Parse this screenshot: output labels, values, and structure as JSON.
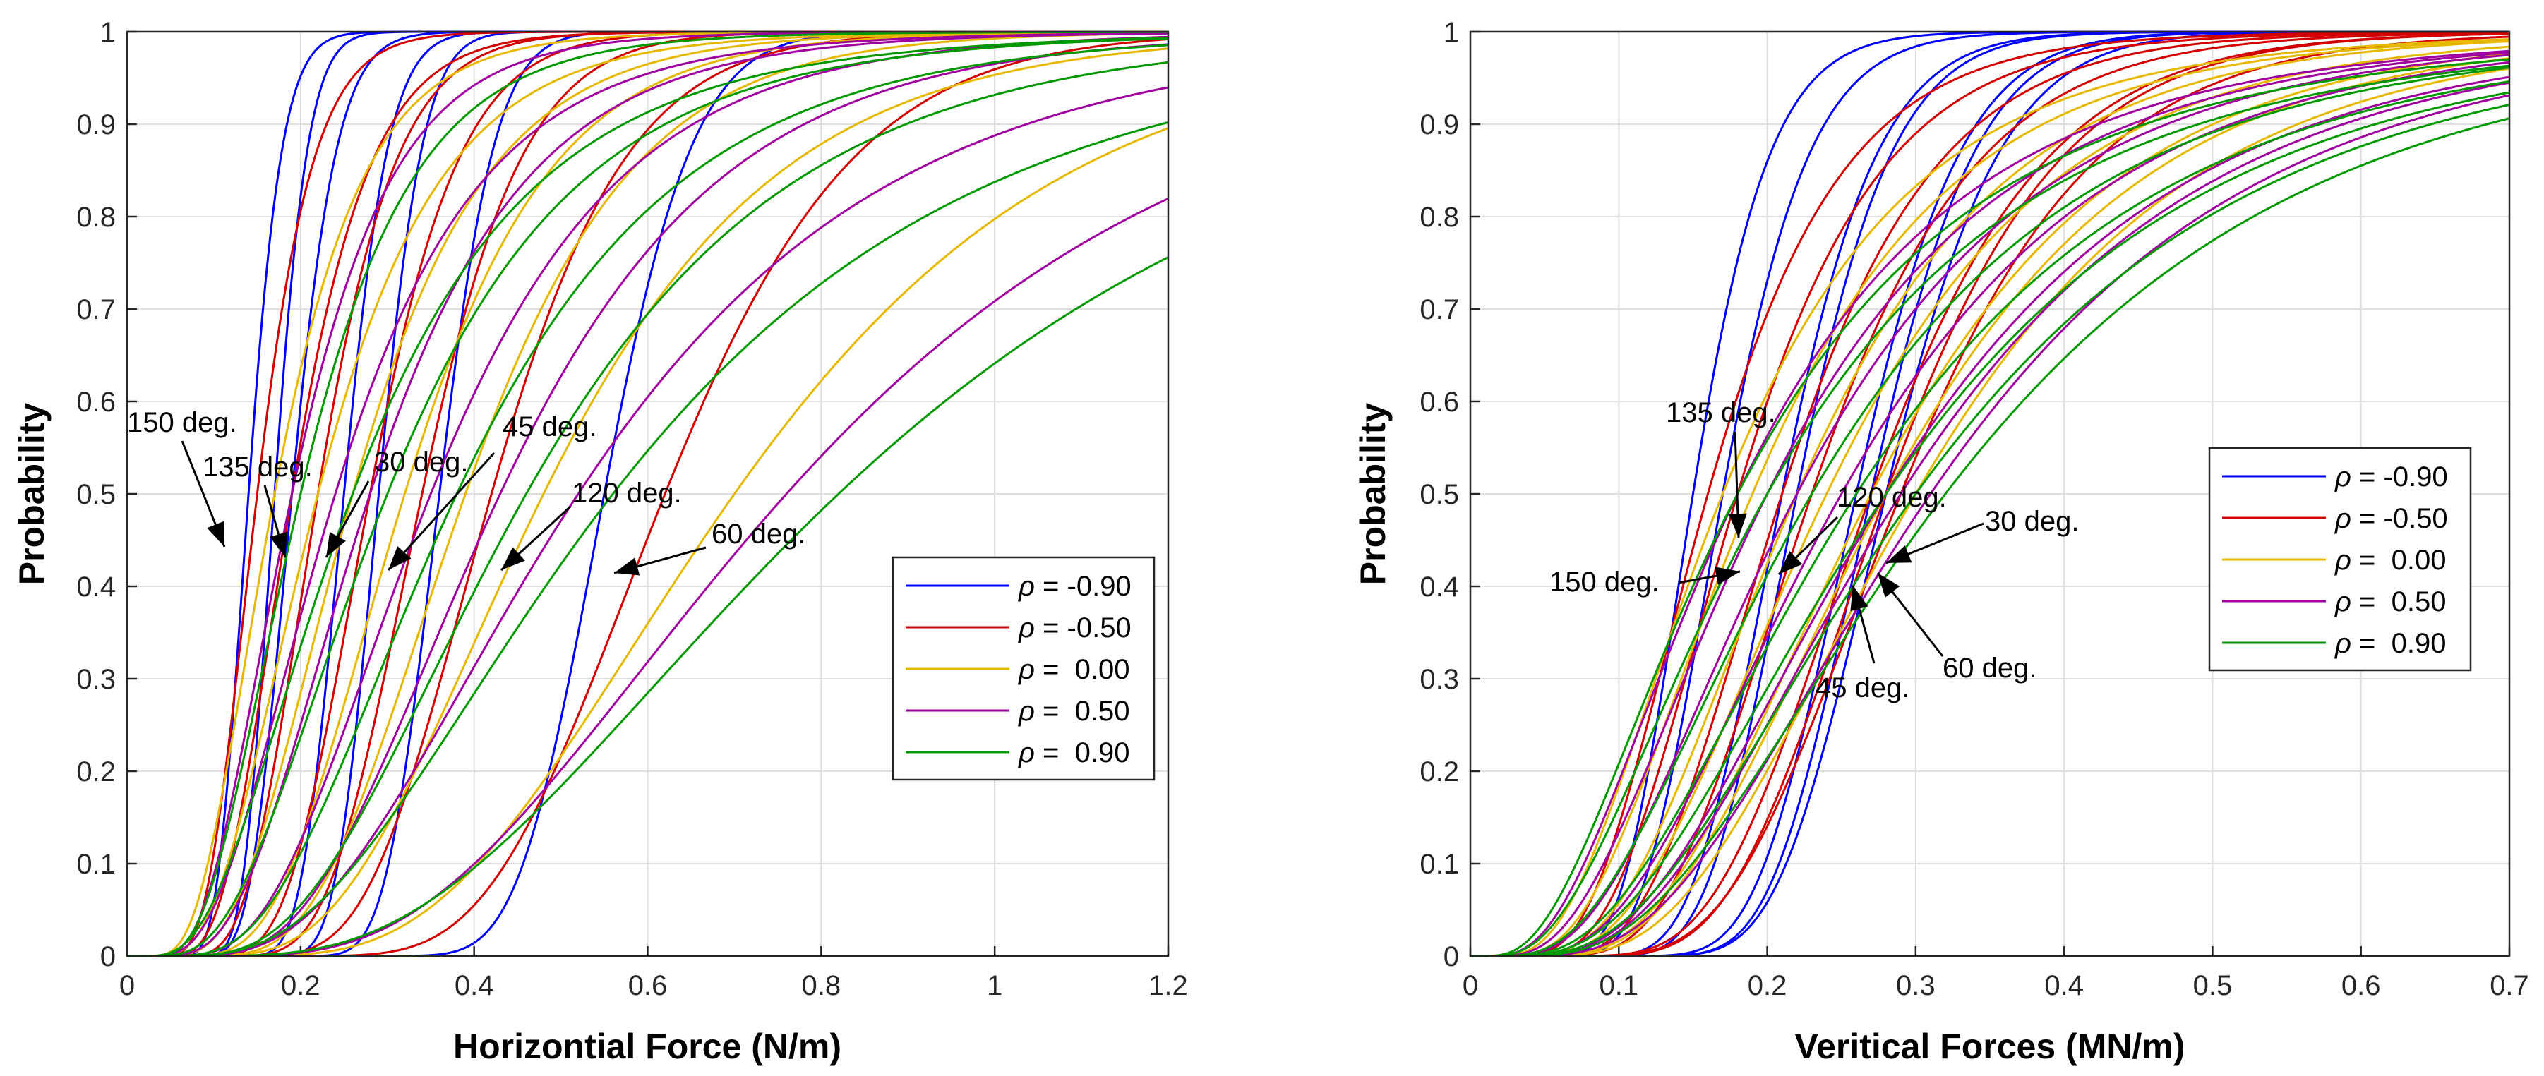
{
  "chart_data": [
    {
      "type": "line",
      "title": "",
      "xlabel": "Horizontial Force (N/m)",
      "ylabel": "Probability",
      "xlim": [
        0,
        1.2
      ],
      "ylim": [
        0,
        1
      ],
      "xticks": [
        "0",
        "0.2",
        "0.4",
        "0.6",
        "0.8",
        "1",
        "1.2"
      ],
      "yticks": [
        "0",
        "0.1",
        "0.2",
        "0.3",
        "0.4",
        "0.5",
        "0.6",
        "0.7",
        "0.8",
        "0.9",
        "1"
      ],
      "grid": true,
      "legend_position": "middle-right",
      "legend": [
        {
          "symbol": "ρ",
          "text": " = -0.90",
          "color": "#0000ff"
        },
        {
          "symbol": "ρ",
          "text": " = -0.50",
          "color": "#d40000"
        },
        {
          "symbol": "ρ",
          "text": " =  0.00",
          "color": "#e6b800"
        },
        {
          "symbol": "ρ",
          "text": " =  0.50",
          "color": "#a000a0"
        },
        {
          "symbol": "ρ",
          "text": " =  0.90",
          "color": "#009900"
        }
      ],
      "crossings": [
        {
          "label": "150 deg.",
          "x": 0.115,
          "y": 0.43
        },
        {
          "label": "135 deg.",
          "x": 0.18,
          "y": 0.42
        },
        {
          "label": "30 deg.",
          "x": 0.23,
          "y": 0.42
        },
        {
          "label": "45 deg.",
          "x": 0.3,
          "y": 0.42
        },
        {
          "label": "120 deg.",
          "x": 0.43,
          "y": 0.42
        },
        {
          "label": "60 deg.",
          "x": 0.56,
          "y": 0.42
        }
      ],
      "series": [
        {
          "rho": -0.9,
          "curves": [
            [
              0.14,
              0.03
            ],
            [
              0.17,
              0.03
            ],
            [
              0.19,
              0.04
            ],
            [
              0.25,
              0.04
            ],
            [
              0.29,
              0.04
            ],
            [
              0.36,
              0.05
            ],
            [
              0.55,
              0.08
            ]
          ]
        },
        {
          "rho": -0.5,
          "curves": [
            [
              0.15,
              0.05
            ],
            [
              0.19,
              0.07
            ],
            [
              0.22,
              0.07
            ],
            [
              0.28,
              0.08
            ],
            [
              0.34,
              0.09
            ],
            [
              0.42,
              0.12
            ],
            [
              0.62,
              0.17
            ]
          ]
        },
        {
          "rho": 0.0,
          "curves": [
            [
              0.17,
              0.08
            ],
            [
              0.22,
              0.11
            ],
            [
              0.26,
              0.12
            ],
            [
              0.32,
              0.13
            ],
            [
              0.39,
              0.15
            ],
            [
              0.48,
              0.21
            ],
            [
              0.7,
              0.3
            ]
          ]
        },
        {
          "rho": 0.5,
          "curves": [
            [
              0.19,
              0.09
            ],
            [
              0.24,
              0.13
            ],
            [
              0.28,
              0.14
            ],
            [
              0.35,
              0.17
            ],
            [
              0.43,
              0.2
            ],
            [
              0.52,
              0.28
            ],
            [
              0.76,
              0.38
            ]
          ]
        },
        {
          "rho": 0.9,
          "curves": [
            [
              0.2,
              0.1
            ],
            [
              0.26,
              0.16
            ],
            [
              0.3,
              0.17
            ],
            [
              0.38,
              0.2
            ],
            [
              0.46,
              0.24
            ],
            [
              0.56,
              0.33
            ],
            [
              0.82,
              0.45
            ]
          ]
        }
      ]
    },
    {
      "type": "line",
      "title": "",
      "xlabel": "Veritical Forces (MN/m)",
      "ylabel": "Probability",
      "xlim": [
        0,
        0.7
      ],
      "ylim": [
        0,
        1
      ],
      "xticks": [
        "0",
        "0.1",
        "0.2",
        "0.3",
        "0.4",
        "0.5",
        "0.6",
        "0.7"
      ],
      "yticks": [
        "0",
        "0.1",
        "0.2",
        "0.3",
        "0.4",
        "0.5",
        "0.6",
        "0.7",
        "0.8",
        "0.9",
        "1"
      ],
      "grid": true,
      "legend_position": "middle-right",
      "legend": [
        {
          "symbol": "ρ",
          "text": " = -0.90",
          "color": "#0000ff"
        },
        {
          "symbol": "ρ",
          "text": " = -0.50",
          "color": "#d40000"
        },
        {
          "symbol": "ρ",
          "text": " =  0.00",
          "color": "#e6b800"
        },
        {
          "symbol": "ρ",
          "text": " =  0.50",
          "color": "#a000a0"
        },
        {
          "symbol": "ρ",
          "text": " =  0.90",
          "color": "#009900"
        }
      ],
      "crossings": [
        {
          "label": "135 deg.",
          "x": 0.177,
          "y": 0.45
        },
        {
          "label": "120 deg.",
          "x": 0.205,
          "y": 0.41
        },
        {
          "label": "30 deg.",
          "x": 0.28,
          "y": 0.43
        },
        {
          "label": "150 deg.",
          "x": 0.17,
          "y": 0.42
        },
        {
          "label": "45 deg.",
          "x": 0.255,
          "y": 0.41
        },
        {
          "label": "60 deg.",
          "x": 0.27,
          "y": 0.42
        }
      ],
      "series": [
        {
          "rho": -0.9,
          "curves": [
            [
              0.15,
              0.04
            ],
            [
              0.17,
              0.045
            ],
            [
              0.21,
              0.05
            ],
            [
              0.22,
              0.05
            ],
            [
              0.26,
              0.055
            ],
            [
              0.27,
              0.055
            ],
            [
              0.28,
              0.06
            ]
          ]
        },
        {
          "rho": -0.5,
          "curves": [
            [
              0.16,
              0.07
            ],
            [
              0.18,
              0.075
            ],
            [
              0.21,
              0.08
            ],
            [
              0.23,
              0.085
            ],
            [
              0.27,
              0.09
            ],
            [
              0.28,
              0.09
            ],
            [
              0.29,
              0.1
            ]
          ]
        },
        {
          "rho": 0.0,
          "curves": [
            [
              0.17,
              0.1
            ],
            [
              0.19,
              0.105
            ],
            [
              0.22,
              0.11
            ],
            [
              0.24,
              0.12
            ],
            [
              0.27,
              0.13
            ],
            [
              0.28,
              0.135
            ],
            [
              0.3,
              0.145
            ]
          ]
        },
        {
          "rho": 0.5,
          "curves": [
            [
              0.18,
              0.12
            ],
            [
              0.2,
              0.125
            ],
            [
              0.22,
              0.13
            ],
            [
              0.25,
              0.14
            ],
            [
              0.28,
              0.155
            ],
            [
              0.29,
              0.16
            ],
            [
              0.31,
              0.17
            ]
          ]
        },
        {
          "rho": 0.9,
          "curves": [
            [
              0.18,
              0.13
            ],
            [
              0.2,
              0.14
            ],
            [
              0.23,
              0.145
            ],
            [
              0.26,
              0.16
            ],
            [
              0.28,
              0.17
            ],
            [
              0.3,
              0.18
            ],
            [
              0.32,
              0.19
            ]
          ]
        }
      ]
    }
  ]
}
